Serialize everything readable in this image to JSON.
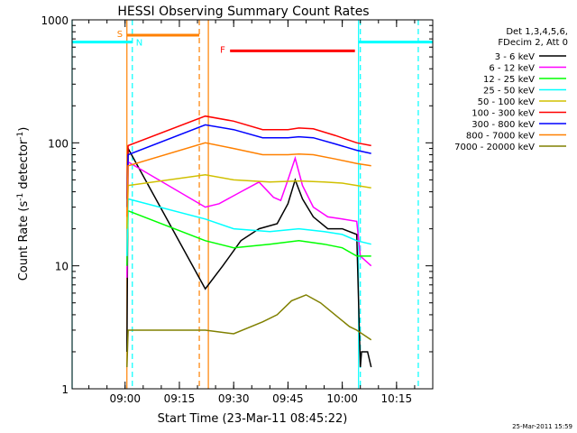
{
  "chart_data": {
    "type": "line",
    "title": "HESSI Observing Summary Count Rates",
    "xlabel": "Start Time (23-Mar-11 08:45:22)",
    "ylabel": "Count Rate (s⁻¹ detector⁻¹)",
    "ylabel_parts": [
      "Count Rate (s",
      "-1",
      " detector",
      "-1",
      ")"
    ],
    "xlim": [
      "08:45:22",
      "10:25:00"
    ],
    "ylim": [
      1,
      1000
    ],
    "yscale": "log",
    "xticks": [
      "09:00",
      "09:15",
      "09:30",
      "09:45",
      "10:00",
      "10:15"
    ],
    "yticks": [
      1,
      10,
      100,
      1000
    ],
    "legend_header": [
      "Det 1,3,4,5,6,",
      "FDecim 2, Att 0"
    ],
    "legend_position": "right",
    "timestamp": "25-Mar-2011 15:59",
    "series": [
      {
        "name": "3 - 6 keV",
        "color": "#000000",
        "x": [
          "09:00:30",
          "09:00:50",
          "09:22:10",
          "09:27",
          "09:32",
          "09:37",
          "09:42",
          "09:45",
          "09:47",
          "09:49",
          "09:52",
          "09:56",
          "10:00",
          "10:04",
          "10:05",
          "10:05:20",
          "10:07",
          "10:08"
        ],
        "values": [
          2,
          90,
          6.5,
          10,
          16,
          20,
          22,
          32,
          50,
          35,
          25,
          20,
          20,
          18,
          1.5,
          2,
          2,
          1.5
        ]
      },
      {
        "name": "6 - 12 keV",
        "color": "#ff00ff",
        "x": [
          "09:00:30",
          "09:00:50",
          "09:22:10",
          "09:26",
          "09:32",
          "09:37",
          "09:41",
          "09:43",
          "09:45",
          "09:47",
          "09:49",
          "09:52",
          "09:56",
          "10:00",
          "10:04",
          "10:05",
          "10:08"
        ],
        "values": [
          8,
          70,
          30,
          32,
          40,
          48,
          36,
          34,
          50,
          75,
          45,
          30,
          25,
          24,
          23,
          12,
          10
        ]
      },
      {
        "name": "12 - 25 keV",
        "color": "#00ff00",
        "x": [
          "09:00:30",
          "09:00:50",
          "09:22:10",
          "09:30",
          "09:40",
          "09:48",
          "09:55",
          "10:00",
          "10:04",
          "10:08"
        ],
        "values": [
          10,
          28,
          16,
          14,
          15,
          16,
          15,
          14,
          12,
          12
        ]
      },
      {
        "name": "25 - 50 keV",
        "color": "#00ffff",
        "x": [
          "09:00:30",
          "09:00:50",
          "09:22:10",
          "09:30",
          "09:40",
          "09:48",
          "09:55",
          "10:00",
          "10:04",
          "10:08"
        ],
        "values": [
          12,
          35,
          24,
          20,
          19,
          20,
          19,
          18,
          16,
          15
        ]
      },
      {
        "name": "50 - 100 keV",
        "color": "#d0c000",
        "x": [
          "09:00:30",
          "09:00:50",
          "09:22:10",
          "09:30",
          "09:40",
          "09:48",
          "09:55",
          "10:00",
          "10:04",
          "10:08"
        ],
        "values": [
          20,
          45,
          55,
          50,
          48,
          49,
          48,
          47,
          45,
          43
        ]
      },
      {
        "name": "100 - 300 keV",
        "color": "#ff0000",
        "x": [
          "09:00:30",
          "09:00:50",
          "09:22:10",
          "09:30",
          "09:38",
          "09:45",
          "09:48",
          "09:52",
          "09:58",
          "10:04",
          "10:08"
        ],
        "values": [
          35,
          95,
          165,
          150,
          128,
          128,
          132,
          130,
          115,
          100,
          95
        ]
      },
      {
        "name": "300 - 800 keV",
        "color": "#0000ff",
        "x": [
          "09:00:30",
          "09:00:50",
          "09:22:10",
          "09:30",
          "09:38",
          "09:45",
          "09:48",
          "09:52",
          "09:58",
          "10:04",
          "10:08"
        ],
        "values": [
          30,
          80,
          140,
          128,
          110,
          110,
          112,
          110,
          98,
          87,
          82
        ]
      },
      {
        "name": "800 - 7000 keV",
        "color": "#ff8000",
        "x": [
          "09:00:30",
          "09:00:50",
          "09:22:10",
          "09:30",
          "09:38",
          "09:45",
          "09:48",
          "09:52",
          "09:58",
          "10:04",
          "10:08"
        ],
        "values": [
          25,
          65,
          100,
          90,
          80,
          80,
          81,
          80,
          74,
          68,
          65
        ]
      },
      {
        "name": "7000 - 20000 keV",
        "color": "#808000",
        "x": [
          "09:00:30",
          "09:00:50",
          "09:22:10",
          "09:30",
          "09:38",
          "09:42",
          "09:46",
          "09:50",
          "09:54",
          "09:58",
          "10:02",
          "10:04",
          "10:08"
        ],
        "values": [
          1.5,
          3,
          3,
          2.8,
          3.5,
          4,
          5.2,
          5.8,
          5,
          4,
          3.2,
          3,
          2.5
        ]
      }
    ],
    "flags": [
      {
        "label": "S",
        "color": "#ff8000",
        "x_start": "09:00:30",
        "x_end": "09:20:30",
        "value": 750,
        "label_value": 760
      },
      {
        "label": "N",
        "color": "#00ffff",
        "x_start": "08:45:22",
        "x_end": "09:02:00",
        "value": 660,
        "label_value": 650
      },
      {
        "label": "N",
        "color": "#00ffff",
        "x_start": "10:04:30",
        "x_end": "10:25:00",
        "value": 660,
        "label_value": 650
      },
      {
        "label": "F",
        "color": "#ff0000",
        "x_start": "09:29:00",
        "x_end": "10:03:30",
        "value": 560,
        "label_value": 570
      }
    ],
    "vlines": [
      {
        "x": "08:45:22",
        "color": "#00ffff",
        "style": "solid"
      },
      {
        "x": "09:00:30",
        "color": "#ff8000",
        "style": "solid"
      },
      {
        "x": "09:02:00",
        "color": "#00ffff",
        "style": "dashed"
      },
      {
        "x": "09:20:30",
        "color": "#ff8000",
        "style": "dashed"
      },
      {
        "x": "09:23:00",
        "color": "#ff8000",
        "style": "solid"
      },
      {
        "x": "10:04:30",
        "color": "#00ffff",
        "style": "solid"
      },
      {
        "x": "10:05:00",
        "color": "#00ffff",
        "style": "dashed"
      },
      {
        "x": "10:21:00",
        "color": "#00ffff",
        "style": "dashed"
      }
    ]
  }
}
